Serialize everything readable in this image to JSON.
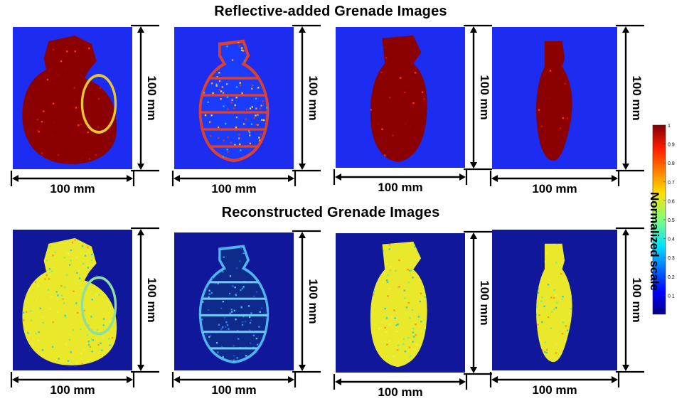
{
  "titles": {
    "top": "Reflective-added Grenade Images",
    "bottom": "Reconstructed Grenade Images"
  },
  "dimension_label": "100 mm",
  "colorbar": {
    "label": "Normalized scale",
    "ticks": [
      "1",
      "0.9",
      "0.8",
      "0.7",
      "0.6",
      "0.5",
      "0.4",
      "0.3",
      "0.2",
      "0.1"
    ],
    "colormap": "jet"
  },
  "panels": [
    {
      "row": "reflective",
      "index": 1,
      "background": "#1c2cf0",
      "object_color": "#8b0000",
      "texture": "speckle-red"
    },
    {
      "row": "reflective",
      "index": 2,
      "background": "#1c2cf0",
      "object_color": "#e8a01a",
      "texture": "mixed"
    },
    {
      "row": "reflective",
      "index": 3,
      "background": "#1c2cf0",
      "object_color": "#8b0000",
      "texture": "speckle-red"
    },
    {
      "row": "reflective",
      "index": 4,
      "background": "#1c2cf0",
      "object_color": "#8b0000",
      "texture": "speckle-red"
    },
    {
      "row": "reconstructed",
      "index": 1,
      "background": "#10179a",
      "object_color": "#e9e82a",
      "texture": "speckle-yellow"
    },
    {
      "row": "reconstructed",
      "index": 2,
      "background": "#10179a",
      "object_color": "#2a6fe0",
      "texture": "blue-outline"
    },
    {
      "row": "reconstructed",
      "index": 3,
      "background": "#10179a",
      "object_color": "#e9e82a",
      "texture": "speckle-yellow"
    },
    {
      "row": "reconstructed",
      "index": 4,
      "background": "#10179a",
      "object_color": "#e9e82a",
      "texture": "speckle-yellow"
    }
  ]
}
